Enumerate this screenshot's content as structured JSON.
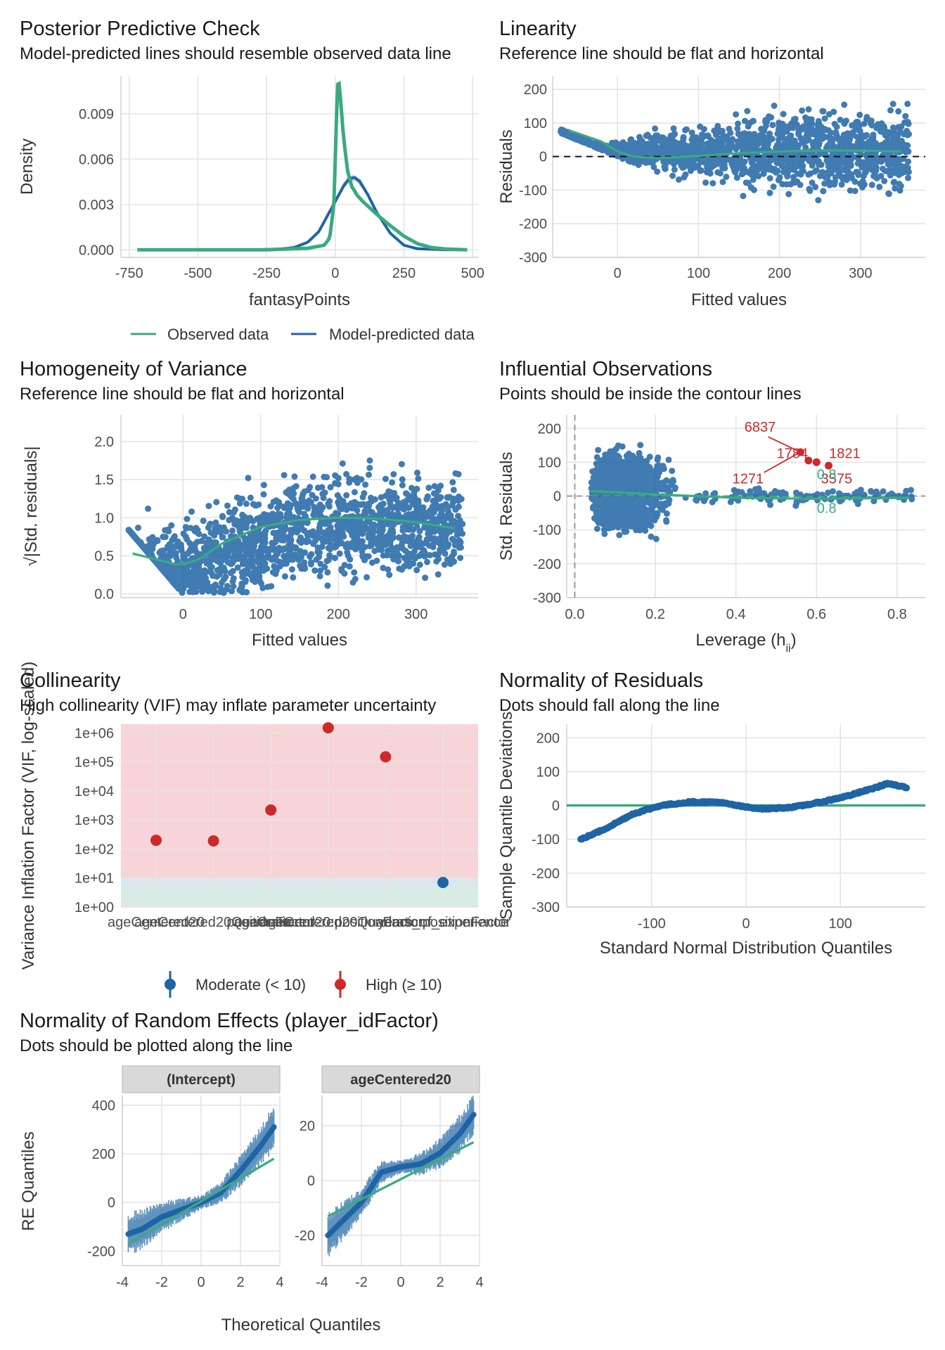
{
  "colors": {
    "observed": "#3aaa7f",
    "predicted": "#1f64a4",
    "points": "#1f64a4",
    "high": "#cc2a2a",
    "moderate": "#1f64a4",
    "grid": "#e4e4e4",
    "high_band": "#f6d4d7",
    "low_band": "#d8ece5"
  },
  "chart_data": [
    {
      "type": "line",
      "title": "Posterior Predictive Check",
      "subtitle": "Model-predicted lines should resemble observed data line",
      "xlabel": "fantasyPoints",
      "ylabel": "Density",
      "xticks": [
        "-750",
        "-500",
        "-250",
        "0",
        "250",
        "500"
      ],
      "yticks": [
        "0.000",
        "0.003",
        "0.006",
        "0.009"
      ],
      "xlim": [
        -780,
        520
      ],
      "ylim": [
        -0.0005,
        0.0115
      ],
      "legend": [
        "Observed data",
        "Model-predicted data"
      ],
      "legend_position": "bottom",
      "series": [
        {
          "name": "Observed data",
          "x": [
            -720,
            -250,
            -100,
            -40,
            -20,
            -5,
            0,
            5,
            10,
            15,
            20,
            30,
            45,
            60,
            80,
            100,
            130,
            160,
            200,
            250,
            300,
            350,
            400,
            480
          ],
          "y": [
            0,
            0,
            0.0001,
            0.0003,
            0.0008,
            0.003,
            0.006,
            0.009,
            0.0113,
            0.0109,
            0.0098,
            0.0075,
            0.0052,
            0.0042,
            0.0036,
            0.0032,
            0.0027,
            0.0022,
            0.0016,
            0.0009,
            0.0004,
            0.00015,
            5e-05,
            0
          ]
        },
        {
          "name": "Model-predicted data",
          "x": [
            -720,
            -300,
            -200,
            -150,
            -100,
            -60,
            -30,
            0,
            30,
            50,
            70,
            90,
            120,
            150,
            200,
            250,
            300,
            400,
            480
          ],
          "y": [
            0,
            0,
            5e-05,
            0.00015,
            0.0005,
            0.0012,
            0.0022,
            0.0032,
            0.0042,
            0.0047,
            0.0048,
            0.0045,
            0.0036,
            0.0025,
            0.0011,
            0.0003,
            7e-05,
            0,
            0
          ]
        }
      ]
    },
    {
      "type": "scatter",
      "title": "Linearity",
      "subtitle": "Reference line should be flat and horizontal",
      "xlabel": "Fitted values",
      "ylabel": "Residuals",
      "xticks": [
        "0",
        "100",
        "200",
        "300"
      ],
      "yticks": [
        "200",
        "100",
        "0",
        "-100",
        "-200",
        "-300"
      ],
      "xlim": [
        -80,
        380
      ],
      "ylim": [
        -300,
        240
      ],
      "reference_line": 0,
      "smooth": {
        "x": [
          -60,
          -20,
          0,
          20,
          50,
          100,
          150,
          200,
          250,
          300,
          350
        ],
        "y": [
          78,
          45,
          15,
          0,
          -5,
          2,
          10,
          15,
          18,
          18,
          15
        ]
      }
    },
    {
      "type": "scatter",
      "title": "Homogeneity of Variance",
      "subtitle": "Reference line should be flat and horizontal",
      "xlabel": "Fitted values",
      "ylabel": "√|Std. residuals|",
      "xticks": [
        "0",
        "100",
        "200",
        "300"
      ],
      "yticks": [
        "2.0",
        "1.5",
        "1.0",
        "0.5",
        "0.0"
      ],
      "xlim": [
        -80,
        380
      ],
      "ylim": [
        -0.05,
        2.35
      ],
      "smooth": {
        "x": [
          -65,
          -30,
          -10,
          0,
          20,
          50,
          100,
          150,
          200,
          250,
          300,
          350
        ],
        "y": [
          0.53,
          0.44,
          0.39,
          0.39,
          0.45,
          0.66,
          0.88,
          0.97,
          1.0,
          0.99,
          0.94,
          0.86
        ]
      }
    },
    {
      "type": "scatter",
      "title": "Influential Observations",
      "subtitle": "Points should be inside the contour lines",
      "xlabel": "Leverage (h",
      "xlabel_sub": "ii",
      "xlabel_end": ")",
      "ylabel": "Std. Residuals",
      "xticks": [
        "0.0",
        "0.2",
        "0.4",
        "0.6",
        "0.8"
      ],
      "yticks": [
        "200",
        "100",
        "0",
        "-100",
        "-200",
        "-300"
      ],
      "xlim": [
        -0.02,
        0.87
      ],
      "ylim": [
        -300,
        240
      ],
      "labels": [
        {
          "text": "6837",
          "x": 0.46,
          "y": 190
        },
        {
          "text": "1784",
          "x": 0.54,
          "y": 112
        },
        {
          "text": "1821",
          "x": 0.67,
          "y": 112
        },
        {
          "text": "1271",
          "x": 0.43,
          "y": 38
        },
        {
          "text": "3575",
          "x": 0.65,
          "y": 38
        }
      ],
      "contour_labels": [
        "0.8",
        "0.8"
      ]
    },
    {
      "type": "scatter",
      "title": "Collinearity",
      "subtitle": "High collinearity (VIF) may inflate parameter uncertainty",
      "xlabel": "",
      "ylabel": "Variance Inflation Factor (VIF, log-scaled)",
      "yscale": "log",
      "yticks": [
        "1e+00",
        "1e+01",
        "1e+02",
        "1e+03",
        "1e+04",
        "1e+05",
        "1e+06"
      ],
      "categories": [
        "ageCentered20",
        "ageCentered20Quadratic",
        "positionFactor",
        "ageCentered20:positionFactor",
        "ageCentered20Quadratic:positionFactor",
        "years_of_experience"
      ],
      "values": [
        200,
        190,
        2200,
        1500000,
        150000,
        7
      ],
      "legend": [
        "Moderate (< 10)",
        "High (≥ 10)"
      ],
      "legend_position": "bottom"
    },
    {
      "type": "scatter",
      "title": "Normality of Residuals",
      "subtitle": "Dots should fall along the line",
      "xlabel": "Standard Normal Distribution Quantiles",
      "ylabel": "Sample Quantile Deviations",
      "xticks": [
        "-100",
        "0",
        "100"
      ],
      "yticks": [
        "200",
        "100",
        "0",
        "-100",
        "-200",
        "-300"
      ],
      "xlim": [
        -190,
        190
      ],
      "ylim": [
        -300,
        240
      ],
      "curve": {
        "x": [
          -175,
          -150,
          -120,
          -90,
          -60,
          -30,
          0,
          20,
          50,
          80,
          110,
          140,
          150,
          170
        ],
        "y": [
          -100,
          -70,
          -25,
          0,
          10,
          10,
          -5,
          -10,
          -5,
          10,
          30,
          55,
          65,
          52
        ]
      }
    },
    {
      "type": "scatter",
      "title": "Normality of Random Effects (player_idFactor)",
      "subtitle": "Dots should be plotted along the line",
      "xlabel": "Theoretical Quantiles",
      "ylabel": "RE Quantiles",
      "facets": [
        {
          "strip": "(Intercept)",
          "xticks": [
            "-4",
            "-2",
            "0",
            "2",
            "4"
          ],
          "yticks": [
            "400",
            "200",
            "0",
            "-200"
          ],
          "xlim": [
            -4,
            4
          ],
          "ylim": [
            -260,
            440
          ],
          "curve": {
            "x": [
              -3.7,
              -3,
              -2,
              -1,
              0,
              1,
              2,
              3,
              3.7
            ],
            "y": [
              -130,
              -110,
              -60,
              -30,
              0,
              40,
              130,
              230,
              310
            ]
          },
          "line": {
            "x": [
              -3.7,
              3.7
            ],
            "y": [
              -170,
              180
            ]
          }
        },
        {
          "strip": "ageCentered20",
          "xticks": [
            "-4",
            "-2",
            "0",
            "2",
            "4"
          ],
          "yticks": [
            "20",
            "0",
            "-20"
          ],
          "xlim": [
            -4,
            4
          ],
          "ylim": [
            -31,
            31
          ],
          "curve": {
            "x": [
              -3.7,
              -3,
              -2,
              -1,
              0,
              1,
              2,
              3,
              3.7
            ],
            "y": [
              -20,
              -15,
              -8,
              3,
              5,
              6,
              10,
              17,
              24
            ]
          },
          "line": {
            "x": [
              -3.7,
              3.7
            ],
            "y": [
              -13,
              14
            ]
          }
        }
      ]
    }
  ]
}
